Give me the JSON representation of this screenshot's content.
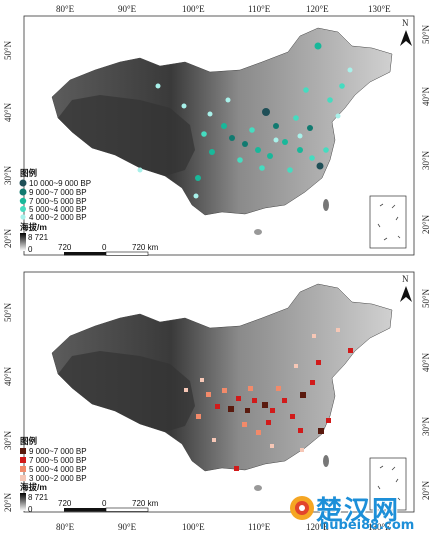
{
  "maps": [
    {
      "name": "top",
      "lon_labels": [
        "80°E",
        "90°E",
        "100°E",
        "110°E",
        "120°E",
        "130°E"
      ],
      "lat_labels": [
        "50°N",
        "40°N",
        "30°N",
        "20°N"
      ],
      "lat_labels_right": [
        "50°N",
        "40°N",
        "30°N",
        "20°N"
      ],
      "north": "N",
      "legend_title": "图例",
      "legend_items": [
        {
          "label": "10 000~9 000 BP",
          "color": "#1f4f57"
        },
        {
          "label": "9 000~7 000 BP",
          "color": "#117a70"
        },
        {
          "label": "7 000~5 000 BP",
          "color": "#18b89a"
        },
        {
          "label": "5 000~4 000 BP",
          "color": "#45dcc0"
        },
        {
          "label": "4 000~2 000 BP",
          "color": "#a8f1ea"
        }
      ],
      "elev_title": "海拔/m",
      "elev_max": "8 721",
      "elev_min": "0",
      "scale_labels": [
        "720",
        "0",
        "720 km"
      ]
    },
    {
      "name": "bottom",
      "lon_labels": [
        "80°E",
        "90°E",
        "100°E",
        "110°E",
        "120°E",
        "130°E"
      ],
      "lat_labels": [
        "50°N",
        "40°N",
        "30°N",
        "20°N"
      ],
      "lat_labels_right": [
        "50°N",
        "40°N",
        "30°N",
        "20°N"
      ],
      "north": "N",
      "legend_title": "图例",
      "legend_items": [
        {
          "label": "9 000~7 000 BP",
          "color": "#5a1a0e"
        },
        {
          "label": "7 000~5 000 BP",
          "color": "#d11a1a"
        },
        {
          "label": "5 000~4 000 BP",
          "color": "#f28a6a"
        },
        {
          "label": "3 000~2 000 BP",
          "color": "#f6c7b6"
        }
      ],
      "elev_title": "海拔/m",
      "elev_max": "8 721",
      "elev_min": "0",
      "scale_labels": [
        "720",
        "0",
        "720 km"
      ]
    }
  ],
  "watermark": {
    "main": "楚汉网",
    "sub": "hubei88.com"
  }
}
